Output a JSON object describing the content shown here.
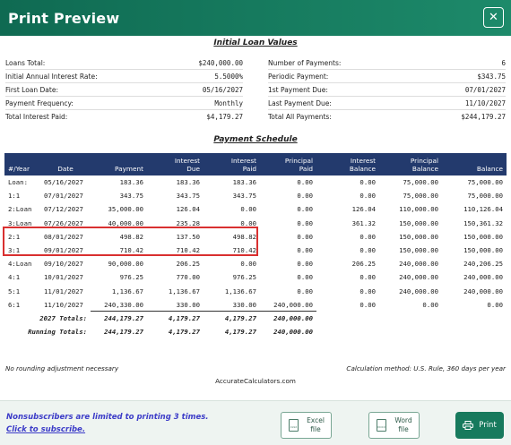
{
  "window": {
    "title": "Print Preview"
  },
  "initial": {
    "title": "Initial Loan Values",
    "left": [
      {
        "label": "Loans Total:",
        "value": "$240,000.00"
      },
      {
        "label": "Initial Annual Interest Rate:",
        "value": "5.5000%"
      },
      {
        "label": "First Loan Date:",
        "value": "05/16/2027"
      },
      {
        "label": "Payment Frequency:",
        "value": "Monthly"
      },
      {
        "label": "Total Interest Paid:",
        "value": "$4,179.27"
      }
    ],
    "right": [
      {
        "label": "Number of Payments:",
        "value": "6"
      },
      {
        "label": "Periodic Payment:",
        "value": "$343.75"
      },
      {
        "label": "1st Payment Due:",
        "value": "07/01/2027"
      },
      {
        "label": "Last Payment Due:",
        "value": "11/10/2027"
      },
      {
        "label": "Total All Payments:",
        "value": "$244,179.27"
      }
    ]
  },
  "schedule": {
    "title": "Payment Schedule",
    "headers": [
      {
        "line1": "",
        "line2": "#/Year"
      },
      {
        "line1": "",
        "line2": "Date"
      },
      {
        "line1": "",
        "line2": "Payment"
      },
      {
        "line1": "Interest",
        "line2": "Due"
      },
      {
        "line1": "Interest",
        "line2": "Paid"
      },
      {
        "line1": "Principal",
        "line2": "Paid"
      },
      {
        "line1": "Interest",
        "line2": "Balance"
      },
      {
        "line1": "Principal",
        "line2": "Balance"
      },
      {
        "line1": "",
        "line2": "Balance"
      }
    ],
    "rows": [
      [
        "Loan:",
        "05/16/2027",
        "183.36",
        "183.36",
        "183.36",
        "0.00",
        "0.00",
        "75,000.00",
        "75,000.00"
      ],
      [
        "1:1",
        "07/01/2027",
        "343.75",
        "343.75",
        "343.75",
        "0.00",
        "0.00",
        "75,000.00",
        "75,000.00"
      ],
      [
        "2:Loan",
        "07/12/2027",
        "35,000.00",
        "126.04",
        "0.00",
        "0.00",
        "126.04",
        "110,000.00",
        "110,126.04"
      ],
      [
        "3:Loan",
        "07/26/2027",
        "40,000.00",
        "235.28",
        "0.00",
        "0.00",
        "361.32",
        "150,000.00",
        "150,361.32"
      ],
      [
        "2:1",
        "08/01/2027",
        "498.82",
        "137.50",
        "498.82",
        "0.00",
        "0.00",
        "150,000.00",
        "150,000.00"
      ],
      [
        "3:1",
        "09/01/2027",
        "710.42",
        "710.42",
        "710.42",
        "0.00",
        "0.00",
        "150,000.00",
        "150,000.00"
      ],
      [
        "4:Loan",
        "09/10/2027",
        "90,000.00",
        "206.25",
        "0.00",
        "0.00",
        "206.25",
        "240,000.00",
        "240,206.25"
      ],
      [
        "4:1",
        "10/01/2027",
        "976.25",
        "770.00",
        "976.25",
        "0.00",
        "0.00",
        "240,000.00",
        "240,000.00"
      ],
      [
        "5:1",
        "11/01/2027",
        "1,136.67",
        "1,136.67",
        "1,136.67",
        "0.00",
        "0.00",
        "240,000.00",
        "240,000.00"
      ],
      [
        "6:1",
        "11/10/2027",
        "240,330.00",
        "330.00",
        "330.00",
        "240,000.00",
        "0.00",
        "0.00",
        "0.00"
      ]
    ],
    "year_totals": {
      "label": "2027 Totals:",
      "payment": "244,179.27",
      "interest_due": "4,179.27",
      "interest_paid": "4,179.27",
      "principal_paid": "240,000.00"
    },
    "running_totals": {
      "label": "Running Totals:",
      "payment": "244,179.27",
      "interest_due": "4,179.27",
      "interest_paid": "4,179.27",
      "principal_paid": "240,000.00"
    }
  },
  "footer": {
    "rounding_note": "No rounding adjustment necessary",
    "calc_method": "Calculation method: U.S. Rule, 360 days per year",
    "site": "AccurateCalculators.com"
  },
  "bottom": {
    "notice": "Nonsubscribers are limited to printing 3 times.",
    "subscribe_link": "Click to subscribe.",
    "excel_button": {
      "line1": "Excel",
      "line2": "file",
      "icon_text": "XLSX"
    },
    "word_button": {
      "line1": "Word",
      "line2": "file",
      "icon_text": "DOCX"
    },
    "print_button": "Print"
  },
  "colors": {
    "titlebar": "#177a5d",
    "table_header": "#233a6d",
    "highlight": "#d93030",
    "notice": "#3c3cc8"
  }
}
